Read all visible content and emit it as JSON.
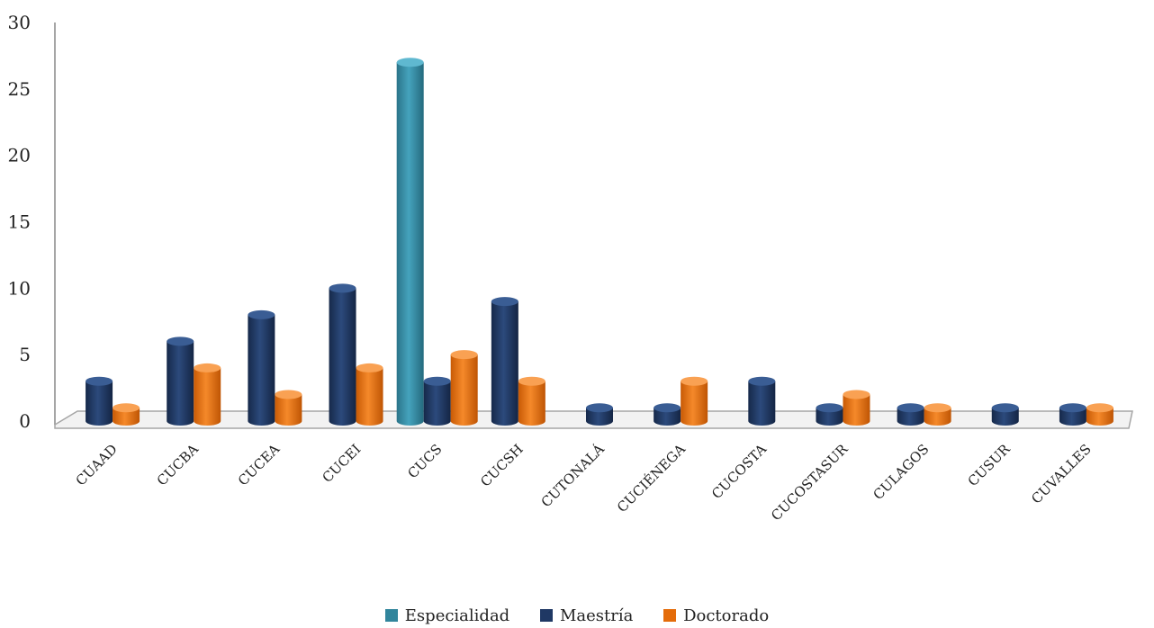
{
  "chart_data": {
    "type": "bar",
    "categories": [
      "CUAAD",
      "CUCBA",
      "CUCEA",
      "CUCEI",
      "CUCS",
      "CUCSH",
      "CUTONALÁ",
      "CUCIÉNEGA",
      "CUCOSTA",
      "CUCOSTASUR",
      "CULAGOS",
      "CUSUR",
      "CUVALLES"
    ],
    "series": [
      {
        "name": "Especialidad",
        "color": "#31859C",
        "values": [
          0,
          0,
          0,
          0,
          27,
          0,
          0,
          0,
          0,
          0,
          0,
          0,
          0
        ]
      },
      {
        "name": "Maestría",
        "color": "#1F3864",
        "values": [
          3,
          6,
          8,
          10,
          3,
          9,
          1,
          1,
          3,
          1,
          1,
          1,
          1
        ]
      },
      {
        "name": "Doctorado",
        "color": "#E46C0A",
        "values": [
          1,
          4,
          2,
          4,
          5,
          3,
          0,
          3,
          0,
          2,
          1,
          0,
          1
        ]
      }
    ],
    "yticks": [
      0,
      5,
      10,
      15,
      20,
      25,
      30
    ],
    "ylim": [
      0,
      30
    ],
    "legend_position": "bottom"
  }
}
